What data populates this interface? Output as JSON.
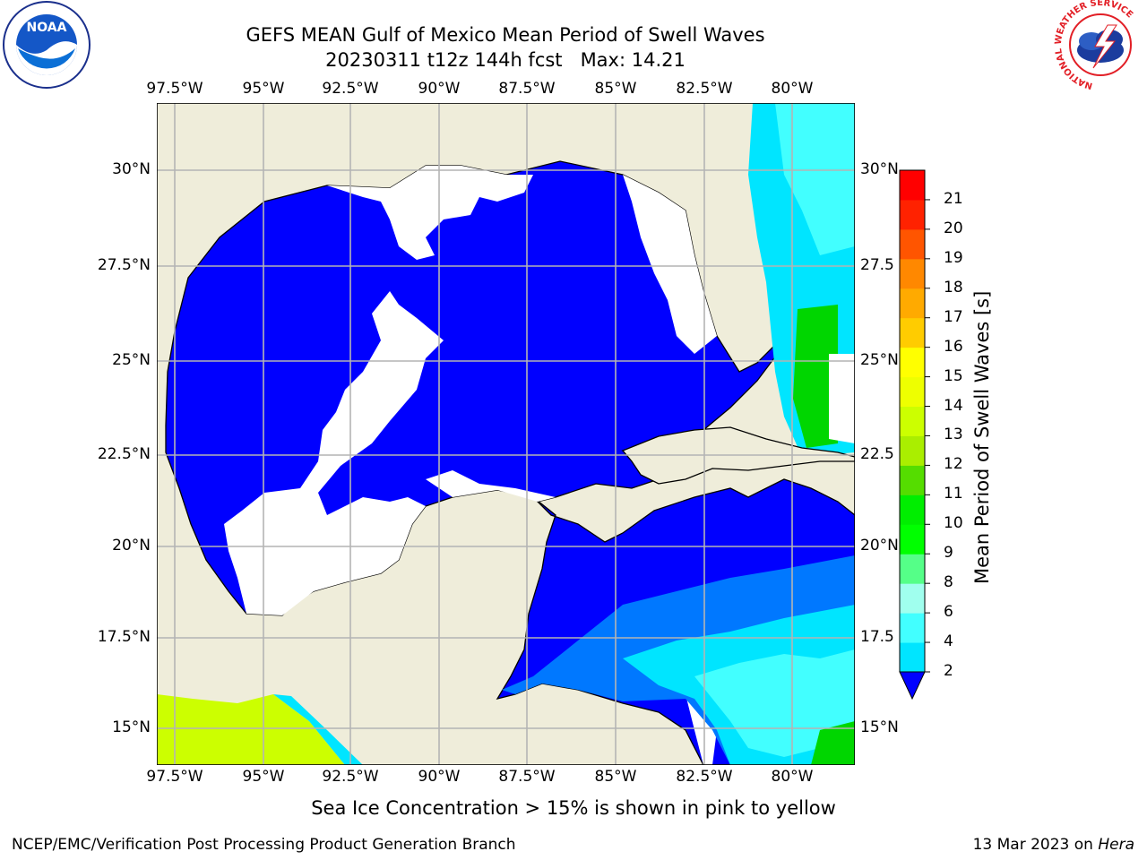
{
  "header": {
    "title_line1": "GEFS MEAN Gulf of Mexico Mean Period of Swell Waves",
    "title_line2": "20230311 t12z 144h fcst   Max: 14.21"
  },
  "logos": {
    "noaa_text": "NOAA",
    "nws_ring_text": "NATIONAL WEATHER SERVICE"
  },
  "map": {
    "lon_labels": [
      "97.5°W",
      "95°W",
      "92.5°W",
      "90°W",
      "87.5°W",
      "85°W",
      "82.5°W",
      "80°W"
    ],
    "lat_labels_left": [
      "30°N",
      "27.5°N",
      "25°N",
      "22.5°N",
      "20°N",
      "17.5°N",
      "15°N"
    ],
    "lat_labels_right": [
      "30°N",
      "27.5",
      "25°N",
      "22.5",
      "20°N",
      "17.5",
      "15°N"
    ],
    "colors": {
      "land": "#efedda",
      "ocean_low": "#0000ff",
      "ocean_2_4": "#0072ff",
      "ocean_4_6": "#00e5ff",
      "ocean_6_8": "#42ffff",
      "ocean_8_9": "#a0ffee",
      "green": "#00d600",
      "yellowgreen": "#ccff00",
      "grid": "#b4b4b4"
    }
  },
  "colorbar": {
    "label": "Mean Period of Swell Waves [s]",
    "ticks": [
      "2",
      "4",
      "6",
      "8",
      "9",
      "10",
      "11",
      "12",
      "13",
      "14",
      "15",
      "16",
      "17",
      "18",
      "19",
      "20",
      "21"
    ],
    "colors": [
      "#0078ff",
      "#00e5ff",
      "#42ffff",
      "#a0ffee",
      "#55ff88",
      "#00ff00",
      "#00ee00",
      "#55dd00",
      "#aaee00",
      "#ccff00",
      "#eeff00",
      "#ffff00",
      "#ffcc00",
      "#ffaa00",
      "#ff8800",
      "#ff5500",
      "#ff2200",
      "#ff0000"
    ]
  },
  "notes": {
    "sea_ice": "Sea Ice Concentration > 15% is shown in pink to yellow"
  },
  "footer": {
    "left": "NCEP/EMC/Verification Post Processing Product Generation Branch",
    "right_date": "13 Mar 2023 on ",
    "right_host": "Hera"
  }
}
